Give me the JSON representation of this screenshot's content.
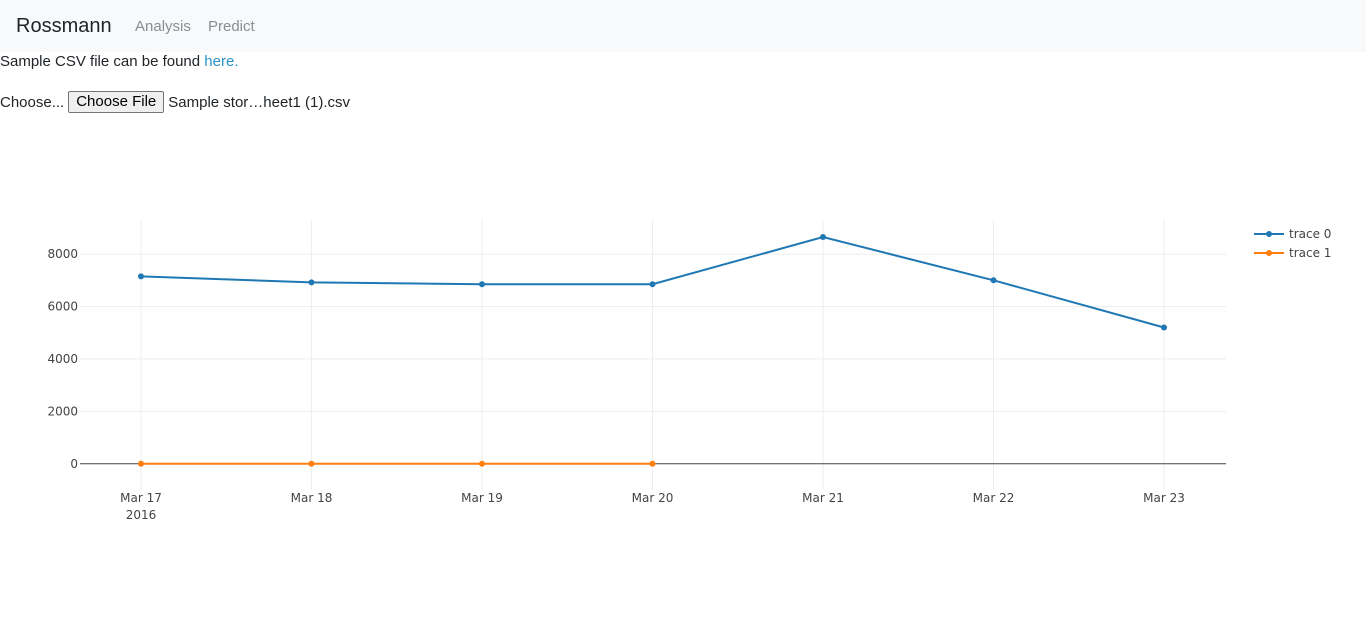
{
  "navbar": {
    "brand": "Rossmann",
    "links": [
      "Analysis",
      "Predict"
    ]
  },
  "sample": {
    "text": "Sample CSV file can be found ",
    "link": "here."
  },
  "file_input": {
    "label": "Choose...",
    "button": "Choose File",
    "filename": "Sample stor…heet1 (1).csv"
  },
  "chart_data": {
    "type": "line",
    "x": [
      "2016-03-17",
      "2016-03-18",
      "2016-03-19",
      "2016-03-20",
      "2016-03-21",
      "2016-03-22",
      "2016-03-23"
    ],
    "x_tick_labels": [
      "Mar 17",
      "Mar 18",
      "Mar 19",
      "Mar 20",
      "Mar 21",
      "Mar 22",
      "Mar 23"
    ],
    "x_tick_sublabel": "2016",
    "y_ticks": [
      0,
      2000,
      4000,
      6000,
      8000
    ],
    "ylim": [
      -1000,
      9300
    ],
    "grid": true,
    "legend_position": "top-right",
    "series": [
      {
        "name": "trace 0",
        "color": "#1f77b4",
        "x": [
          "2016-03-17",
          "2016-03-18",
          "2016-03-19",
          "2016-03-20",
          "2016-03-21",
          "2016-03-22",
          "2016-03-23"
        ],
        "values": [
          7150,
          6920,
          6850,
          6850,
          8650,
          7000,
          5200
        ]
      },
      {
        "name": "trace 1",
        "color": "#ff7f0e",
        "x": [
          "2016-03-17",
          "2016-03-18",
          "2016-03-19",
          "2016-03-20"
        ],
        "values": [
          0,
          0,
          0,
          0
        ]
      }
    ]
  }
}
